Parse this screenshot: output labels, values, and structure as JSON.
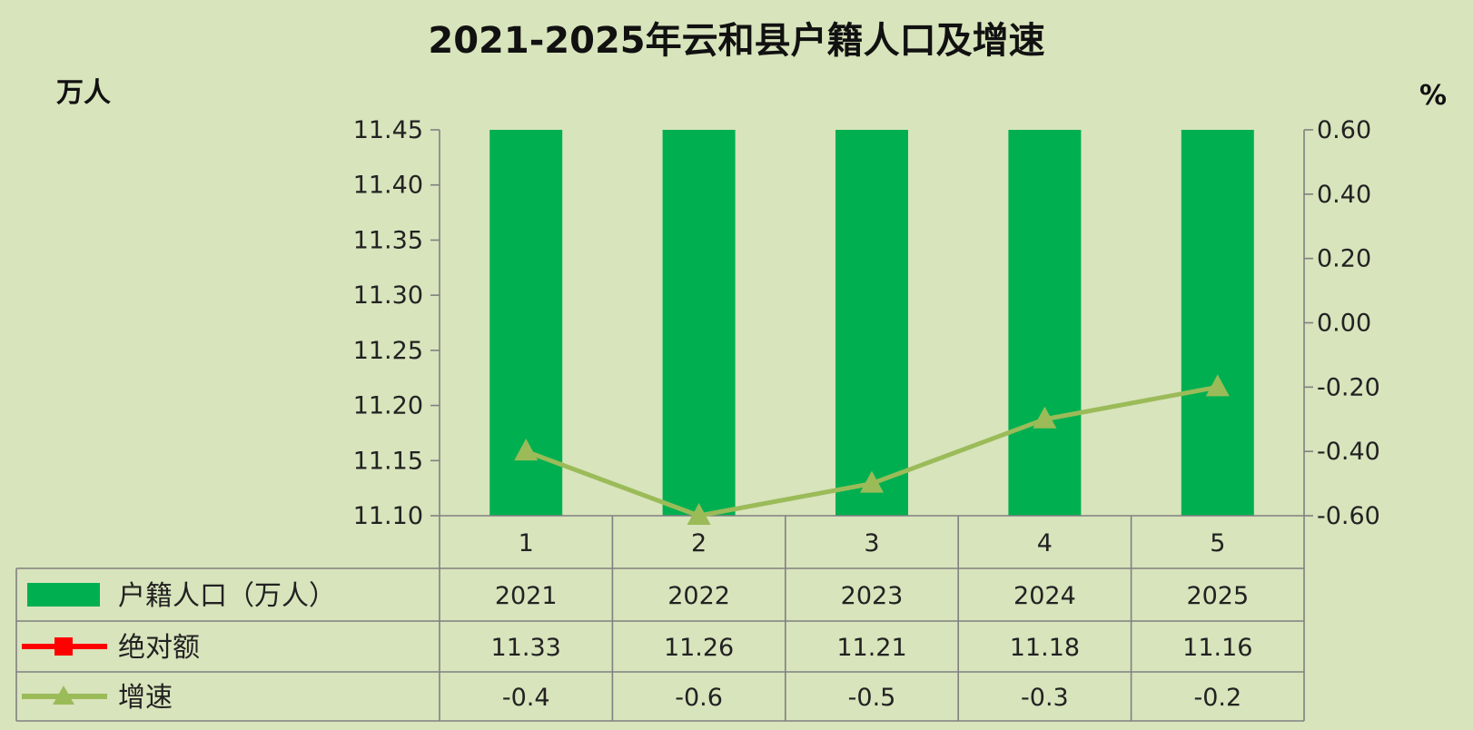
{
  "chart_data": {
    "type": "bar",
    "title": "2021-2025年云和县户籍人口及增速",
    "left_unit": "万人",
    "right_unit": "%",
    "categories": [
      "1",
      "2",
      "3",
      "4",
      "5"
    ],
    "years": [
      "2021",
      "2022",
      "2023",
      "2024",
      "2025"
    ],
    "y_left_ticks": [
      "11.45",
      "11.40",
      "11.35",
      "11.30",
      "11.25",
      "11.20",
      "11.15",
      "11.10"
    ],
    "y_right_ticks": [
      "0.60",
      "0.40",
      "0.20",
      "0.00",
      "-0.20",
      "-0.40",
      "-0.60"
    ],
    "ylim_left": [
      11.1,
      11.45
    ],
    "ylim_right": [
      -0.6,
      0.6
    ],
    "series": [
      {
        "name": "户籍人口（万人）",
        "type": "bar",
        "axis": "left",
        "color": "#00b050",
        "values": [
          2021,
          2022,
          2023,
          2024,
          2025
        ],
        "display": [
          "2021",
          "2022",
          "2023",
          "2024",
          "2025"
        ]
      },
      {
        "name": "绝对额",
        "type": "line",
        "axis": "left",
        "color": "#ff0000",
        "marker": "square",
        "values": [
          11.33,
          11.26,
          11.21,
          11.18,
          11.16
        ],
        "display": [
          "11.33",
          "11.26",
          "11.21",
          "11.18",
          "11.16"
        ]
      },
      {
        "name": "增速",
        "type": "line",
        "axis": "right",
        "color": "#9bbb59",
        "marker": "triangle",
        "values": [
          -0.4,
          -0.6,
          -0.5,
          -0.3,
          -0.2
        ],
        "display": [
          "-0.4",
          "-0.6",
          "-0.5",
          "-0.3",
          "-0.2"
        ]
      }
    ],
    "grid": false,
    "legend_position": "bottom-table"
  }
}
